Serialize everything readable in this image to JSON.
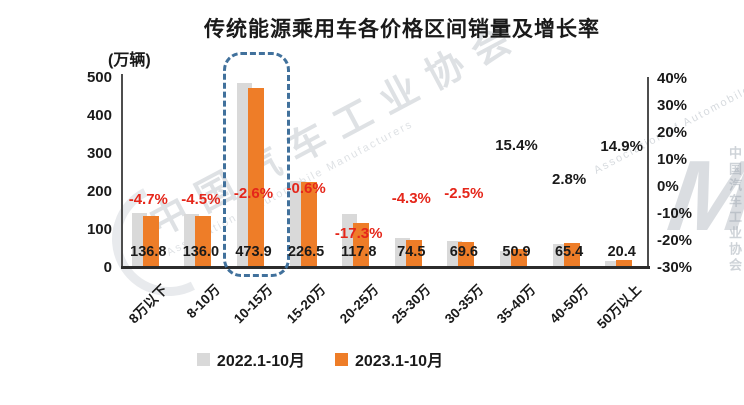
{
  "title": "传统能源乘用车各价格区间销量及增长率",
  "unit_label": "(万辆)",
  "legend": [
    {
      "label": "2022.1-10月",
      "color": "#d9d9d9"
    },
    {
      "label": "2023.1-10月",
      "color": "#ee7d28"
    }
  ],
  "watermark": {
    "cn": "中国汽车工业协会",
    "en": "Association of Automobile Manufacturers",
    "logo_letter": "M"
  },
  "colors": {
    "bar_gray": "#d9d9d9",
    "bar_orange": "#ee7d28",
    "negative_red": "#e5261a",
    "label_black": "#1a1a1a",
    "highlight_border": "#41719c",
    "axis_dark": "#2b2b2b",
    "watermark_gray": "#9fa8b2"
  },
  "chart_data": {
    "type": "bar",
    "title": "传统能源乘用车各价格区间销量及增长率",
    "xlabel": "",
    "ylabel": "(万辆)",
    "categories": [
      "8万以下",
      "8-10万",
      "10-15万",
      "15-20万",
      "20-25万",
      "25-30万",
      "30-35万",
      "35-40万",
      "40-50万",
      "50万以上"
    ],
    "series": [
      {
        "name": "2022.1-10月",
        "color": "#d9d9d9",
        "labels_shown": false,
        "values": [
          143.5,
          142.4,
          486.6,
          227.9,
          142.4,
          77.8,
          71.4,
          44.1,
          63.6,
          17.8
        ]
      },
      {
        "name": "2023.1-10月",
        "color": "#ee7d28",
        "labels_shown": true,
        "values": [
          136.8,
          136.0,
          473.9,
          226.5,
          117.8,
          74.5,
          69.6,
          50.9,
          65.4,
          20.4
        ]
      }
    ],
    "growth_labels": [
      "-4.7%",
      "-4.5%",
      "-2.6%",
      "-0.6%",
      "-17.3%",
      "-4.3%",
      "-2.5%",
      "15.4%",
      "2.8%",
      "14.9%"
    ],
    "growth_values": [
      -4.7,
      -4.5,
      -2.6,
      -0.6,
      -17.3,
      -4.3,
      -2.5,
      15.4,
      2.8,
      14.9
    ],
    "left_axis": {
      "min": 0,
      "max": 500,
      "ticks": [
        "500",
        "400",
        "300",
        "200",
        "100",
        "0"
      ]
    },
    "right_axis": {
      "min": -30,
      "max": 40,
      "ticks": [
        "40%",
        "30%",
        "20%",
        "10%",
        "0%",
        "-10%",
        "-20%",
        "-30%"
      ]
    },
    "highlight_category": "10-15万",
    "grid": false,
    "legend_position": "bottom"
  }
}
